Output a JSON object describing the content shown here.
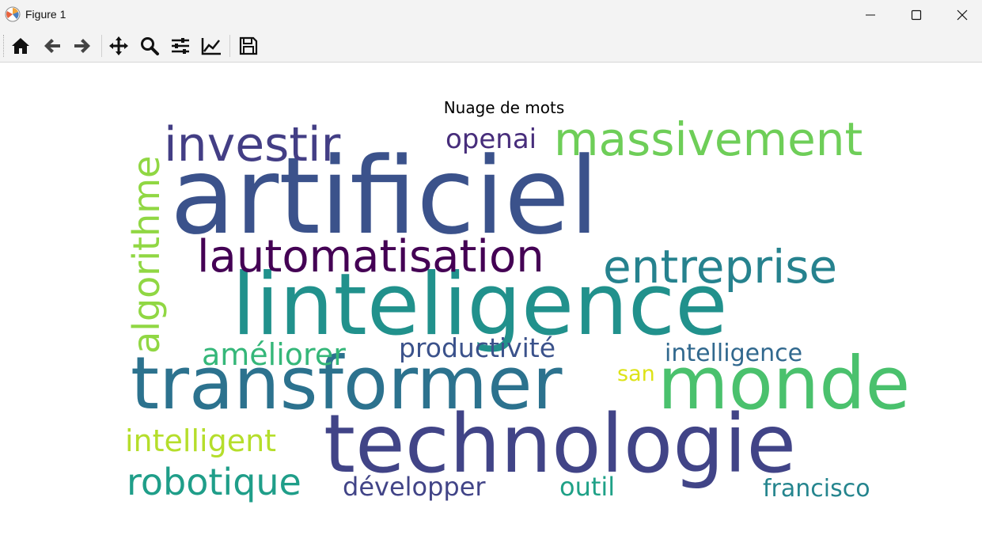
{
  "window": {
    "title": "Figure 1",
    "icon": "matplotlib-icon",
    "controls": [
      "minimize-icon",
      "maximize-icon",
      "close-icon"
    ]
  },
  "toolbar": {
    "buttons": [
      "home-icon",
      "back-arrow-icon",
      "forward-arrow-icon",
      "pan-icon",
      "zoom-icon",
      "subplots-config-icon",
      "edit-axis-icon",
      "save-icon"
    ]
  },
  "figure": {
    "title": "Nuage de mots",
    "words": [
      {
        "text": "artificiel",
        "color": "#3b528b"
      },
      {
        "text": "linteligence",
        "color": "#21918c"
      },
      {
        "text": "transformer",
        "color": "#2c728e"
      },
      {
        "text": "technologie",
        "color": "#414487"
      },
      {
        "text": "monde",
        "color": "#4ac16d"
      },
      {
        "text": "investir",
        "color": "#433e85"
      },
      {
        "text": "massivement",
        "color": "#6ece58"
      },
      {
        "text": "lautomatisation",
        "color": "#440154"
      },
      {
        "text": "entreprise",
        "color": "#26828e"
      },
      {
        "text": "algorithme",
        "color": "#90d743"
      },
      {
        "text": "openai",
        "color": "#472d7b"
      },
      {
        "text": "améliorer",
        "color": "#35b779"
      },
      {
        "text": "productivité",
        "color": "#3b528b"
      },
      {
        "text": "intelligence",
        "color": "#31688e"
      },
      {
        "text": "san",
        "color": "#dde318"
      },
      {
        "text": "intelligent",
        "color": "#b5de2b"
      },
      {
        "text": "robotique",
        "color": "#1f9e89"
      },
      {
        "text": "développer",
        "color": "#414487"
      },
      {
        "text": "outil",
        "color": "#1fa187"
      },
      {
        "text": "francisco",
        "color": "#25858e"
      }
    ]
  }
}
